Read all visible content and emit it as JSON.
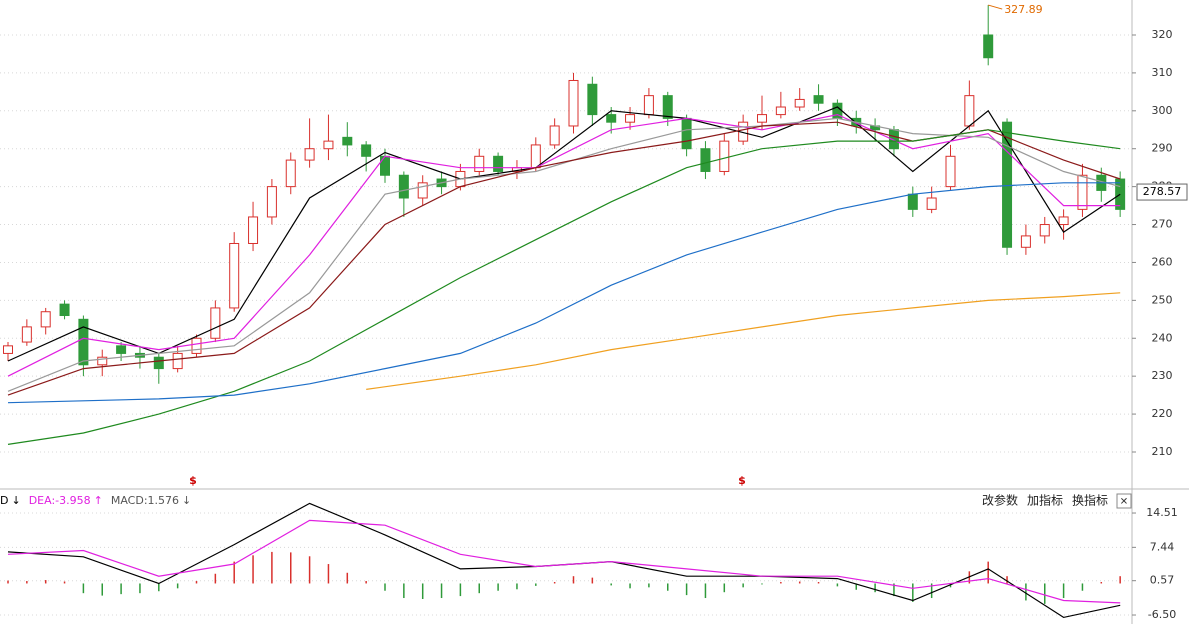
{
  "chart_data": [
    {
      "type": "candlestick",
      "ylim": [
        200.5,
        329.23
      ],
      "yticks": [
        210,
        220,
        230,
        240,
        250,
        260,
        270,
        280,
        290,
        300,
        310,
        320
      ],
      "grid": true,
      "up_color": "#d9302c",
      "down_color": "#2f9a3a",
      "candles": [
        [
          236,
          239,
          234,
          238
        ],
        [
          239,
          245,
          238,
          243
        ],
        [
          243,
          248,
          241,
          247
        ],
        [
          249,
          250,
          245,
          246
        ],
        [
          245,
          246,
          230,
          233
        ],
        [
          233,
          237,
          230,
          235
        ],
        [
          238,
          239,
          234,
          236
        ],
        [
          236,
          238,
          232,
          235
        ],
        [
          235,
          236,
          228,
          232
        ],
        [
          232,
          238,
          231,
          236
        ],
        [
          236,
          241,
          235,
          240
        ],
        [
          240,
          250,
          239,
          248
        ],
        [
          248,
          268,
          247,
          265
        ],
        [
          265,
          276,
          263,
          272
        ],
        [
          272,
          282,
          270,
          280
        ],
        [
          280,
          289,
          278,
          287
        ],
        [
          287,
          298,
          285,
          290
        ],
        [
          290,
          299,
          287,
          292
        ],
        [
          293,
          297,
          288,
          291
        ],
        [
          291,
          292,
          284,
          288
        ],
        [
          288,
          290,
          281,
          283
        ],
        [
          283,
          284,
          272,
          277
        ],
        [
          277,
          283,
          275,
          281
        ],
        [
          282,
          284,
          278,
          280
        ],
        [
          280,
          286,
          279,
          284
        ],
        [
          284,
          290,
          283,
          288
        ],
        [
          288,
          289,
          283,
          284
        ],
        [
          284,
          287,
          282,
          285
        ],
        [
          285,
          293,
          284,
          291
        ],
        [
          291,
          298,
          290,
          296
        ],
        [
          296,
          310,
          294,
          308
        ],
        [
          307,
          309,
          296,
          299
        ],
        [
          299,
          301,
          294,
          297
        ],
        [
          297,
          301,
          295,
          299
        ],
        [
          299,
          306,
          298,
          304
        ],
        [
          304,
          305,
          296,
          298
        ],
        [
          298,
          299,
          288,
          290
        ],
        [
          290,
          292,
          282,
          284
        ],
        [
          284,
          294,
          283,
          292
        ],
        [
          292,
          299,
          291,
          297
        ],
        [
          297,
          304,
          295,
          299
        ],
        [
          299,
          305,
          298,
          301
        ],
        [
          301,
          306,
          300,
          303
        ],
        [
          304,
          307,
          300,
          302
        ],
        [
          302,
          303,
          296,
          298
        ],
        [
          298,
          300,
          294,
          296
        ],
        [
          296,
          298,
          292,
          295
        ],
        [
          295,
          296,
          288,
          290
        ],
        [
          278,
          280,
          272,
          274
        ],
        [
          274,
          280,
          273,
          277
        ],
        [
          280,
          291,
          279,
          288
        ],
        [
          296,
          308,
          295,
          304
        ],
        [
          320,
          327.89,
          312,
          314
        ],
        [
          297,
          298,
          262,
          264
        ],
        [
          264,
          270,
          262,
          267
        ],
        [
          267,
          272,
          265,
          270
        ],
        [
          270,
          274,
          266,
          272
        ],
        [
          274,
          286,
          272,
          283
        ],
        [
          283,
          285,
          276,
          279
        ],
        [
          282,
          284,
          272,
          274
        ]
      ],
      "series": [
        {
          "color": "#000000",
          "x": [
            0,
            4,
            8,
            12,
            16,
            20,
            24,
            28,
            32,
            36,
            40,
            44,
            48,
            52,
            56,
            59
          ],
          "values": [
            234,
            243,
            236,
            245,
            277,
            289,
            282,
            285,
            300,
            298,
            293,
            301,
            284,
            300,
            268,
            278
          ]
        },
        {
          "color": "#e020e0",
          "x": [
            0,
            4,
            8,
            12,
            16,
            20,
            24,
            28,
            32,
            36,
            40,
            44,
            48,
            52,
            56,
            59
          ],
          "values": [
            230,
            240,
            237,
            240,
            262,
            288,
            285,
            285,
            295,
            298,
            295,
            299,
            290,
            294,
            275,
            275
          ]
        },
        {
          "color": "#999999",
          "x": [
            0,
            4,
            8,
            12,
            16,
            20,
            24,
            28,
            32,
            36,
            40,
            44,
            48,
            52,
            56,
            59
          ],
          "values": [
            226,
            234,
            236,
            238,
            252,
            278,
            282,
            284,
            290,
            295,
            296,
            298,
            294,
            293,
            284,
            280
          ]
        },
        {
          "color": "#8b1a1a",
          "x": [
            0,
            4,
            8,
            12,
            16,
            20,
            24,
            28,
            32,
            36,
            40,
            44,
            48,
            52,
            56,
            59
          ],
          "values": [
            225,
            232,
            234,
            236,
            248,
            270,
            280,
            285,
            289,
            292,
            296,
            297,
            292,
            295,
            287,
            282
          ]
        },
        {
          "color": "#1f8a1f",
          "x": [
            0,
            4,
            8,
            12,
            16,
            20,
            24,
            28,
            32,
            36,
            40,
            44,
            48,
            52,
            56,
            59
          ],
          "values": [
            212,
            215,
            220,
            226,
            234,
            245,
            256,
            266,
            276,
            285,
            290,
            292,
            292,
            295,
            292,
            290
          ]
        },
        {
          "color": "#1e6fc8",
          "x": [
            0,
            4,
            8,
            12,
            16,
            20,
            24,
            28,
            32,
            36,
            40,
            44,
            48,
            52,
            56,
            59
          ],
          "values": [
            223,
            223.5,
            224,
            225,
            228,
            232,
            236,
            244,
            254,
            262,
            268,
            274,
            278,
            280,
            281,
            281
          ]
        },
        {
          "color": "#f0a020",
          "x": [
            19,
            24,
            28,
            32,
            36,
            40,
            44,
            48,
            52,
            56,
            59
          ],
          "values": [
            226.5,
            230,
            233,
            237,
            240,
            243,
            246,
            248,
            250,
            251,
            252
          ]
        }
      ],
      "max_label": 327.89,
      "last_price": 278.57,
      "event_markers": [
        "$",
        "$"
      ]
    },
    {
      "type": "macd",
      "ylim": [
        -8.35,
        18.84
      ],
      "yticks": [
        14.51,
        7.44,
        0.57,
        {
          "value": -6.5,
          "label": "-6.50"
        }
      ],
      "grid": true,
      "legend": [
        {
          "label": "D",
          "arrow": "↓",
          "color": "#000000"
        },
        {
          "label": "DEA:-3.958",
          "arrow": "↑",
          "color": "#e020e0"
        },
        {
          "label": "MACD:1.576",
          "arrow": "↓",
          "color": "#555555"
        }
      ],
      "buttons": [
        "改参数",
        "加指标",
        "换指标"
      ],
      "close": "✕",
      "histogram": {
        "up_color": "#d9302c",
        "down_color": "#2f9a3a",
        "values": [
          0.6,
          0.5,
          0.7,
          0.4,
          -2.0,
          -2.5,
          -2.2,
          -2.0,
          -1.6,
          -1.0,
          0.5,
          2.0,
          4.5,
          5.8,
          6.5,
          6.4,
          5.6,
          4.0,
          2.2,
          0.5,
          -1.5,
          -3.0,
          -3.2,
          -3.0,
          -2.6,
          -2.0,
          -1.5,
          -1.2,
          -0.5,
          0.3,
          1.5,
          1.2,
          -0.4,
          -1.0,
          -0.8,
          -1.5,
          -2.4,
          -3.0,
          -1.8,
          -0.8,
          -0.2,
          0.3,
          0.4,
          0.3,
          -0.6,
          -1.3,
          -1.8,
          -2.6,
          -3.8,
          -3.0,
          -0.8,
          2.5,
          4.5,
          1.5,
          -3.5,
          -4.2,
          -3.0,
          -1.5,
          0.3,
          1.5
        ]
      },
      "series": [
        {
          "color": "#000000",
          "x": [
            0,
            4,
            8,
            12,
            16,
            20,
            24,
            28,
            32,
            36,
            40,
            44,
            48,
            52,
            56,
            59
          ],
          "values": [
            6.5,
            5.5,
            0,
            8,
            16.5,
            10,
            3,
            3.5,
            4.5,
            1.5,
            1.5,
            1,
            -3.5,
            3,
            -7,
            -4.5
          ]
        },
        {
          "color": "#e020e0",
          "x": [
            0,
            4,
            8,
            12,
            16,
            20,
            24,
            28,
            32,
            36,
            40,
            44,
            48,
            52,
            56,
            59
          ],
          "values": [
            6,
            6.8,
            1.5,
            4,
            13,
            12,
            6,
            3.5,
            4.5,
            3,
            1.5,
            1.5,
            -1,
            1,
            -3.5,
            -4
          ]
        }
      ]
    }
  ]
}
